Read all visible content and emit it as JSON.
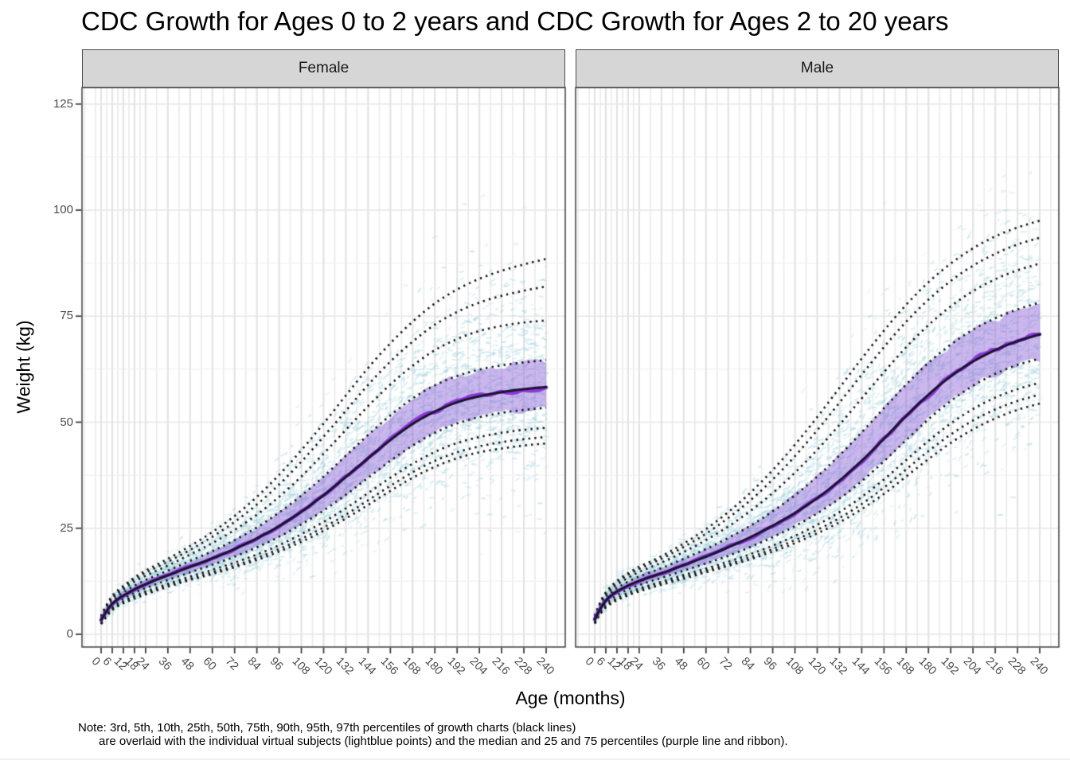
{
  "note": {
    "line1": "Note: 3rd, 5th, 10th, 25th, 50th, 75th, 90th, 95th, 97th percentiles of growth charts (black lines)",
    "line2": "are overlaid with the individual virtual subjects (lightblue points) and the median and 25 and 75 percentiles (purple line and ribbon)."
  },
  "chart_data": {
    "type": "line",
    "title": "CDC Growth for Ages 0 to 2 years and CDC Growth for Ages 2 to 20 years",
    "xlabel": "Age (months)",
    "ylabel": "Weight (kg)",
    "x_ticks": [
      0,
      6,
      12,
      18,
      24,
      36,
      48,
      60,
      72,
      84,
      96,
      108,
      120,
      132,
      144,
      156,
      168,
      180,
      192,
      204,
      216,
      228,
      240
    ],
    "y_ticks": [
      0,
      25,
      50,
      75,
      100,
      125
    ],
    "xlim": [
      -10,
      250
    ],
    "ylim": [
      -3,
      129
    ],
    "grid": true,
    "legend": "none",
    "percentiles": [
      3,
      5,
      10,
      25,
      50,
      75,
      90,
      95,
      97
    ],
    "ages_months": [
      0,
      3,
      6,
      9,
      12,
      18,
      24,
      36,
      48,
      60,
      72,
      84,
      96,
      108,
      120,
      132,
      144,
      156,
      168,
      180,
      192,
      204,
      216,
      228,
      240
    ],
    "facets": [
      {
        "label": "Female",
        "series": {
          "p3": [
            2.4,
            4.2,
            5.7,
            6.6,
            7.3,
            8.4,
            9.4,
            11.2,
            12.8,
            14.2,
            15.8,
            17.5,
            19.5,
            21.8,
            24.4,
            27.3,
            30.5,
            33.8,
            36.9,
            39.5,
            41.5,
            42.9,
            43.8,
            44.5,
            45.0
          ],
          "p5": [
            2.5,
            4.4,
            5.9,
            6.8,
            7.5,
            8.7,
            9.7,
            11.5,
            13.1,
            14.6,
            16.2,
            18.0,
            20.1,
            22.5,
            25.2,
            28.2,
            31.6,
            35.0,
            38.2,
            40.9,
            42.9,
            44.3,
            45.3,
            46.0,
            46.5
          ],
          "p10": [
            2.7,
            4.6,
            6.1,
            7.1,
            7.8,
            9.1,
            10.1,
            11.9,
            13.6,
            15.2,
            16.9,
            18.8,
            21.0,
            23.6,
            26.5,
            29.7,
            33.3,
            36.9,
            40.2,
            43.0,
            45.1,
            46.5,
            47.5,
            48.2,
            48.7
          ],
          "p25": [
            3.0,
            5.0,
            6.6,
            7.6,
            8.4,
            9.8,
            10.9,
            12.8,
            14.6,
            16.4,
            18.3,
            20.5,
            23.0,
            25.9,
            29.2,
            32.9,
            36.9,
            40.9,
            44.5,
            47.5,
            49.7,
            51.2,
            52.2,
            52.9,
            53.4
          ],
          "p50": [
            3.4,
            5.5,
            7.2,
            8.3,
            9.1,
            10.6,
            11.8,
            13.9,
            15.9,
            17.9,
            20.1,
            22.6,
            25.5,
            28.9,
            32.8,
            37.1,
            41.5,
            45.8,
            49.6,
            52.5,
            54.7,
            56.1,
            57.1,
            57.8,
            58.3
          ],
          "p75": [
            3.7,
            6.0,
            7.8,
            9.0,
            9.9,
            11.5,
            12.8,
            15.0,
            17.3,
            19.6,
            22.2,
            25.2,
            28.7,
            32.7,
            37.2,
            42.1,
            47.0,
            51.6,
            55.6,
            58.7,
            60.9,
            62.4,
            63.4,
            64.1,
            64.6
          ],
          "p90": [
            4.0,
            6.5,
            8.4,
            9.7,
            10.6,
            12.4,
            13.8,
            16.2,
            18.8,
            21.5,
            24.6,
            28.2,
            32.4,
            37.2,
            42.6,
            48.2,
            53.8,
            58.9,
            63.3,
            67.0,
            69.6,
            71.5,
            72.7,
            73.5,
            74.0
          ],
          "p95": [
            4.2,
            6.8,
            8.8,
            10.1,
            11.1,
            13.0,
            14.5,
            17.1,
            19.9,
            23.0,
            26.5,
            30.6,
            35.3,
            40.7,
            46.6,
            52.7,
            58.8,
            64.3,
            69.0,
            73.0,
            76.0,
            78.2,
            79.8,
            81.0,
            82.0
          ],
          "p97": [
            4.3,
            7.0,
            9.1,
            10.4,
            11.4,
            13.4,
            15.0,
            17.8,
            20.8,
            24.1,
            27.9,
            32.4,
            37.6,
            43.4,
            49.7,
            56.3,
            62.8,
            68.6,
            73.7,
            78.0,
            81.3,
            83.8,
            85.7,
            87.2,
            88.5
          ]
        }
      },
      {
        "label": "Male",
        "series": {
          "p3": [
            2.5,
            4.8,
            6.3,
            7.3,
            8.0,
            9.2,
            10.1,
            11.7,
            13.1,
            14.6,
            16.1,
            17.7,
            19.5,
            21.5,
            23.8,
            26.4,
            29.5,
            33.1,
            37.2,
            41.3,
            45.1,
            48.3,
            50.9,
            52.9,
            54.4
          ],
          "p5": [
            2.6,
            5.0,
            6.5,
            7.5,
            8.2,
            9.4,
            10.4,
            12.0,
            13.5,
            15.0,
            16.5,
            18.2,
            20.1,
            22.2,
            24.6,
            27.4,
            30.7,
            34.6,
            38.9,
            43.2,
            47.1,
            50.4,
            53.0,
            55.0,
            56.5
          ],
          "p10": [
            2.8,
            5.2,
            6.8,
            7.8,
            8.5,
            9.8,
            10.8,
            12.4,
            14.0,
            15.5,
            17.1,
            18.9,
            20.9,
            23.2,
            25.8,
            28.8,
            32.4,
            36.5,
            41.1,
            45.6,
            49.7,
            53.1,
            55.8,
            57.8,
            59.3
          ],
          "p25": [
            3.1,
            5.6,
            7.3,
            8.4,
            9.2,
            10.6,
            11.6,
            13.3,
            15.0,
            16.7,
            18.5,
            20.6,
            22.9,
            25.5,
            28.5,
            32.0,
            36.1,
            40.8,
            45.8,
            50.7,
            55.0,
            58.6,
            61.4,
            63.5,
            65.0
          ],
          "p50": [
            3.5,
            6.0,
            7.9,
            9.2,
            10.1,
            11.5,
            12.6,
            14.4,
            16.3,
            18.3,
            20.5,
            22.9,
            25.6,
            28.6,
            32.1,
            36.2,
            40.9,
            46.1,
            51.5,
            56.5,
            60.8,
            64.3,
            67.0,
            69.1,
            70.7
          ],
          "p75": [
            3.8,
            6.6,
            8.5,
            9.9,
            10.9,
            12.4,
            13.6,
            15.6,
            17.8,
            20.1,
            22.7,
            25.6,
            29.0,
            32.8,
            37.2,
            42.2,
            47.6,
            53.3,
            58.9,
            64.0,
            68.3,
            71.8,
            74.5,
            76.6,
            78.2
          ],
          "p90": [
            4.1,
            7.1,
            9.2,
            10.6,
            11.7,
            13.3,
            14.7,
            16.9,
            19.4,
            22.2,
            25.4,
            29.1,
            33.3,
            38.1,
            43.5,
            49.4,
            55.6,
            61.8,
            67.7,
            72.9,
            77.3,
            80.9,
            83.7,
            85.8,
            87.4
          ],
          "p95": [
            4.3,
            7.4,
            9.6,
            11.1,
            12.2,
            14.0,
            15.4,
            17.8,
            20.6,
            23.7,
            27.4,
            31.6,
            36.5,
            42.0,
            48.1,
            54.6,
            61.2,
            67.7,
            73.7,
            78.9,
            83.3,
            86.9,
            89.7,
            91.9,
            93.5
          ],
          "p97": [
            4.4,
            7.6,
            9.9,
            11.4,
            12.6,
            14.4,
            15.9,
            18.4,
            21.4,
            24.8,
            28.8,
            33.4,
            38.7,
            44.7,
            51.2,
            58.1,
            65.0,
            71.6,
            77.7,
            83.0,
            87.4,
            91.0,
            93.8,
            95.9,
            97.5
          ]
        }
      }
    ],
    "colors": {
      "point_color": "#A8D6E2",
      "ribbon_color": "#8B5FD6",
      "subject_median_color": "#8B33D6",
      "chart_median_color": "#1A1430",
      "percentile_line_color": "#1A1A1A",
      "grid_major_color": "#E3E3E3",
      "grid_minor_color": "#ECECEC",
      "panel_border_color": "#4A4A4A",
      "strip_bg": "#D6D6D6",
      "axis_text_color": "#4D4D4D"
    }
  }
}
